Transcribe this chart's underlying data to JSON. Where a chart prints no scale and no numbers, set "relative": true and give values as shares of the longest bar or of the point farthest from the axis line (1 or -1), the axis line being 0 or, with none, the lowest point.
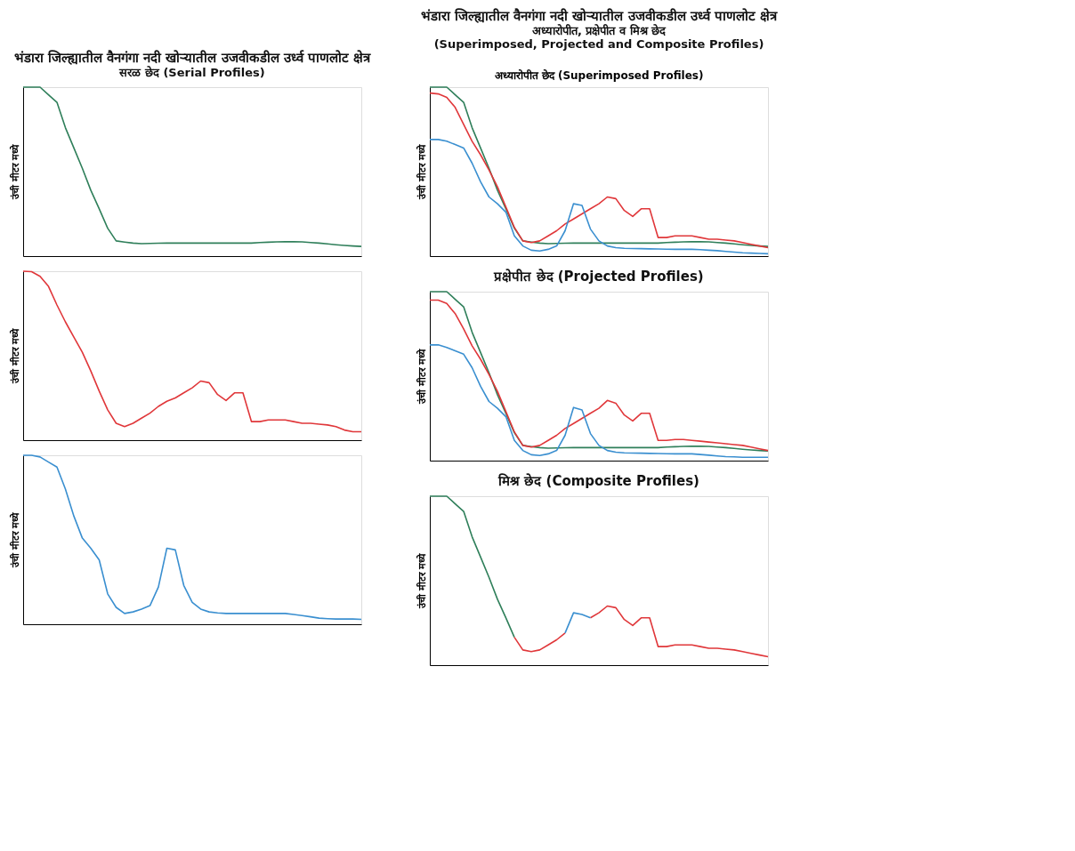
{
  "chart_data": [
    {
      "type": "line",
      "relative": true,
      "title": "भंडारा जिल्ह्यातील वैनगंगा नदी खोऱ्यातील उजवीकडील उर्ध्व पाणलोट क्षेत्र",
      "subtitle": "सरळ छेद (Serial Profiles)",
      "ylabel": "उंची मीटर मध्ये",
      "categories": [
        null,
        null,
        null,
        null,
        null,
        null,
        null,
        null,
        null,
        null,
        null,
        null,
        null,
        null,
        null,
        null,
        null,
        null,
        null,
        null,
        null,
        null,
        null,
        null,
        null,
        null,
        null,
        null,
        null,
        null,
        null,
        null,
        null,
        null,
        null,
        null,
        null,
        null,
        null,
        null,
        null
      ],
      "series": [
        {
          "color": "#2f7f5a",
          "values": [
            1.0,
            1.0,
            1.0,
            0.955,
            0.91,
            0.76,
            0.64,
            0.52,
            0.39,
            0.28,
            0.165,
            0.09,
            0.083,
            0.077,
            0.074,
            0.075,
            0.076,
            0.077,
            0.077,
            0.077,
            0.077,
            0.077,
            0.077,
            0.077,
            0.077,
            0.077,
            0.077,
            0.077,
            0.08,
            0.082,
            0.084,
            0.085,
            0.085,
            0.084,
            0.08,
            0.077,
            0.072,
            0.067,
            0.063,
            0.06,
            0.057
          ]
        }
      ]
    },
    {
      "type": "line",
      "relative": true,
      "ylabel": "उंची मीटर मध्ये",
      "categories": [
        null,
        null,
        null,
        null,
        null,
        null,
        null,
        null,
        null,
        null,
        null,
        null,
        null,
        null,
        null,
        null,
        null,
        null,
        null,
        null,
        null,
        null,
        null,
        null,
        null,
        null,
        null,
        null,
        null,
        null,
        null,
        null,
        null,
        null,
        null,
        null,
        null,
        null,
        null,
        null,
        null
      ],
      "series": [
        {
          "color": "#e0373a",
          "values": [
            1.0,
            0.997,
            0.97,
            0.91,
            0.8,
            0.7,
            0.61,
            0.52,
            0.41,
            0.29,
            0.18,
            0.1,
            0.08,
            0.1,
            0.13,
            0.16,
            0.2,
            0.23,
            0.25,
            0.28,
            0.31,
            0.35,
            0.34,
            0.27,
            0.235,
            0.28,
            0.28,
            0.11,
            0.11,
            0.12,
            0.12,
            0.12,
            0.11,
            0.1,
            0.1,
            0.095,
            0.09,
            0.08,
            0.06,
            0.05,
            0.05
          ]
        }
      ]
    },
    {
      "type": "line",
      "relative": true,
      "ylabel": "उंची मीटर मध्ये",
      "categories": [
        null,
        null,
        null,
        null,
        null,
        null,
        null,
        null,
        null,
        null,
        null,
        null,
        null,
        null,
        null,
        null,
        null,
        null,
        null,
        null,
        null,
        null,
        null,
        null,
        null,
        null,
        null,
        null,
        null,
        null,
        null,
        null,
        null,
        null,
        null,
        null,
        null,
        null,
        null,
        null,
        null
      ],
      "series": [
        {
          "color": "#3a8fd0",
          "values": [
            1.0,
            1.0,
            0.99,
            0.96,
            0.93,
            0.8,
            0.64,
            0.51,
            0.45,
            0.38,
            0.18,
            0.1,
            0.064,
            0.073,
            0.09,
            0.11,
            0.22,
            0.45,
            0.44,
            0.23,
            0.13,
            0.09,
            0.073,
            0.067,
            0.064,
            0.064,
            0.064,
            0.064,
            0.064,
            0.064,
            0.064,
            0.064,
            0.058,
            0.051,
            0.044,
            0.036,
            0.033,
            0.031,
            0.031,
            0.031,
            0.029
          ]
        }
      ]
    },
    {
      "type": "line",
      "relative": true,
      "title": "भंडारा जिल्ह्यातील वैनगंगा नदी खोऱ्यातील उजवीकडील उर्ध्व पाणलोट क्षेत्र",
      "subtitle": "अध्यारोपीत, प्रक्षेपीत व मिश्र छेद\n(Superimposed, Projected and Composite Profiles)",
      "annotations": [
        "अध्यारोपीत छेद (Superimposed Profiles)"
      ],
      "ylabel": "उंची मीटर मध्ये",
      "categories": [
        null,
        null,
        null,
        null,
        null,
        null,
        null,
        null,
        null,
        null,
        null,
        null,
        null,
        null,
        null,
        null,
        null,
        null,
        null,
        null,
        null,
        null,
        null,
        null,
        null,
        null,
        null,
        null,
        null,
        null,
        null,
        null,
        null,
        null,
        null,
        null,
        null,
        null,
        null,
        null,
        null
      ],
      "series": [
        {
          "color": "#2f7f5a",
          "values": [
            1.0,
            1.0,
            1.0,
            0.955,
            0.91,
            0.76,
            0.64,
            0.52,
            0.39,
            0.28,
            0.165,
            0.09,
            0.083,
            0.077,
            0.074,
            0.075,
            0.076,
            0.077,
            0.077,
            0.077,
            0.077,
            0.077,
            0.077,
            0.077,
            0.077,
            0.077,
            0.077,
            0.077,
            0.08,
            0.082,
            0.084,
            0.085,
            0.085,
            0.084,
            0.08,
            0.077,
            0.072,
            0.067,
            0.063,
            0.06,
            0.057
          ]
        },
        {
          "color": "#e0373a",
          "values": [
            0.965,
            0.96,
            0.94,
            0.88,
            0.78,
            0.68,
            0.6,
            0.51,
            0.41,
            0.29,
            0.17,
            0.09,
            0.08,
            0.09,
            0.12,
            0.15,
            0.19,
            0.22,
            0.25,
            0.28,
            0.31,
            0.35,
            0.34,
            0.27,
            0.235,
            0.28,
            0.28,
            0.11,
            0.11,
            0.12,
            0.12,
            0.12,
            0.11,
            0.1,
            0.1,
            0.095,
            0.09,
            0.08,
            0.07,
            0.06,
            0.05
          ]
        },
        {
          "color": "#3a8fd0",
          "values": [
            0.69,
            0.69,
            0.68,
            0.66,
            0.64,
            0.55,
            0.44,
            0.35,
            0.31,
            0.26,
            0.12,
            0.06,
            0.035,
            0.03,
            0.04,
            0.06,
            0.15,
            0.31,
            0.3,
            0.16,
            0.09,
            0.06,
            0.05,
            0.046,
            0.045,
            0.044,
            0.043,
            0.042,
            0.041,
            0.04,
            0.04,
            0.04,
            0.038,
            0.035,
            0.032,
            0.028,
            0.024,
            0.02,
            0.018,
            0.016,
            0.014
          ]
        }
      ]
    },
    {
      "type": "line",
      "relative": true,
      "title": "प्रक्षेपीत छेद (Projected Profiles)",
      "ylabel": "उंची मीटर मध्ये",
      "categories": [
        null,
        null,
        null,
        null,
        null,
        null,
        null,
        null,
        null,
        null,
        null,
        null,
        null,
        null,
        null,
        null,
        null,
        null,
        null,
        null,
        null,
        null,
        null,
        null,
        null,
        null,
        null,
        null,
        null,
        null,
        null,
        null,
        null,
        null,
        null,
        null,
        null,
        null,
        null,
        null,
        null
      ],
      "series": [
        {
          "color": "#2f7f5a",
          "values": [
            1.0,
            1.0,
            1.0,
            0.955,
            0.91,
            0.76,
            0.64,
            0.52,
            0.39,
            0.28,
            0.165,
            0.09,
            0.083,
            0.077,
            0.074,
            0.075,
            0.076,
            0.077,
            0.077,
            0.077,
            0.077,
            0.077,
            0.077,
            0.077,
            0.077,
            0.077,
            0.077,
            0.077,
            0.08,
            0.082,
            0.084,
            0.085,
            0.085,
            0.084,
            0.08,
            0.077,
            0.072,
            0.067,
            0.063,
            0.06,
            0.057
          ]
        },
        {
          "color": "#e0373a",
          "values": [
            0.95,
            0.95,
            0.93,
            0.87,
            0.78,
            0.68,
            0.6,
            0.51,
            0.41,
            0.29,
            0.17,
            0.09,
            0.08,
            0.09,
            0.12,
            0.15,
            0.19,
            0.22,
            0.25,
            0.28,
            0.31,
            0.356,
            0.34,
            0.27,
            0.235,
            0.28,
            0.28,
            0.12,
            0.12,
            0.125,
            0.125,
            0.12,
            0.115,
            0.11,
            0.105,
            0.1,
            0.095,
            0.09,
            0.08,
            0.07,
            0.06
          ]
        },
        {
          "color": "#3a8fd0",
          "values": [
            0.685,
            0.685,
            0.67,
            0.65,
            0.63,
            0.55,
            0.44,
            0.35,
            0.31,
            0.26,
            0.12,
            0.06,
            0.035,
            0.03,
            0.04,
            0.06,
            0.15,
            0.315,
            0.3,
            0.16,
            0.09,
            0.06,
            0.05,
            0.046,
            0.045,
            0.044,
            0.043,
            0.042,
            0.041,
            0.04,
            0.04,
            0.04,
            0.036,
            0.032,
            0.028,
            0.024,
            0.022,
            0.02,
            0.02,
            0.02,
            0.02
          ]
        }
      ]
    },
    {
      "type": "line",
      "relative": true,
      "title": "मिश्र छेद (Composite Profiles)",
      "ylabel": "उंची मीटर मध्ये",
      "categories": [
        null,
        null,
        null,
        null,
        null,
        null,
        null,
        null,
        null,
        null,
        null,
        null,
        null,
        null,
        null,
        null,
        null,
        null,
        null,
        null,
        null,
        null,
        null,
        null,
        null,
        null,
        null,
        null,
        null,
        null,
        null,
        null,
        null,
        null,
        null,
        null,
        null,
        null,
        null,
        null,
        null
      ],
      "series": [
        {
          "color": "#2f7f5a",
          "values": [
            1.0,
            1.0,
            1.0,
            0.955,
            0.91,
            0.76,
            0.64,
            0.52,
            0.39,
            0.28,
            0.165,
            null,
            null,
            null,
            null,
            null,
            null,
            null,
            null,
            null,
            null,
            null,
            null,
            null,
            null,
            null,
            null,
            null,
            null,
            null,
            null,
            null,
            null,
            null,
            null,
            null,
            null,
            null,
            null,
            null,
            null
          ]
        },
        {
          "color": "#e0373a",
          "values": [
            null,
            null,
            null,
            null,
            null,
            null,
            null,
            null,
            null,
            null,
            0.165,
            0.09,
            0.08,
            0.09,
            0.12,
            0.15,
            0.19,
            null,
            null,
            0.28,
            0.31,
            0.35,
            0.34,
            0.27,
            0.235,
            0.28,
            0.28,
            0.11,
            0.11,
            0.12,
            0.12,
            0.12,
            0.11,
            0.1,
            0.1,
            0.095,
            0.09,
            0.08,
            0.07,
            0.06,
            0.05
          ]
        },
        {
          "color": "#3a8fd0",
          "values": [
            null,
            null,
            null,
            null,
            null,
            null,
            null,
            null,
            null,
            null,
            null,
            null,
            null,
            null,
            null,
            null,
            0.19,
            0.31,
            0.3,
            0.28,
            null,
            null,
            null,
            null,
            null,
            null,
            null,
            null,
            null,
            null,
            null,
            null,
            null,
            null,
            null,
            null,
            null,
            null,
            null,
            null,
            null
          ]
        }
      ]
    }
  ]
}
